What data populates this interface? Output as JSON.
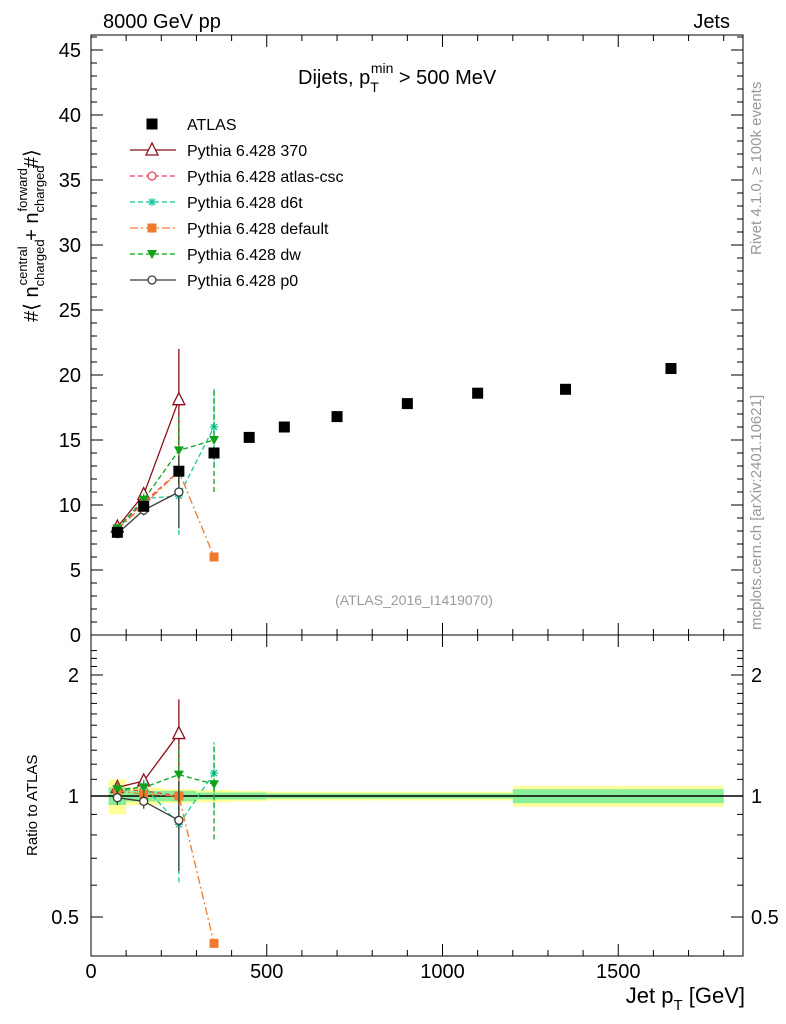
{
  "header": {
    "left": "8000 GeV pp",
    "right": "Jets",
    "side_top": "Rivet 4.1.0, ≥ 100k events",
    "side_bottom": "mcplots.cern.ch [arXiv:2401.10621]",
    "watermark": "(ATLAS_2016_I1419070)"
  },
  "chart_data": [
    {
      "type": "scatter",
      "title": "Dijets, p_T^min > 500 MeV",
      "ylabel": "#⟨ n_charged^central + n_charged^forward #⟩",
      "xlim": [
        0,
        1850
      ],
      "ylim": [
        0,
        46
      ],
      "yticks": [
        0,
        5,
        10,
        15,
        20,
        25,
        30,
        35,
        40,
        45
      ],
      "data": {
        "name": "ATLAS",
        "x": [
          75,
          150,
          250,
          350,
          450,
          550,
          700,
          900,
          1100,
          1350,
          1650
        ],
        "y": [
          7.9,
          9.9,
          12.6,
          14.0,
          15.2,
          16.0,
          16.8,
          17.8,
          18.6,
          18.9,
          20.5
        ]
      },
      "series": [
        {
          "name": "Pythia 6.428 370",
          "color": "#8b0f1a",
          "style": "solid",
          "marker": "triangle-open",
          "x": [
            75,
            150,
            250
          ],
          "y": [
            8.3,
            10.8,
            18.1
          ],
          "err": [
            0.3,
            0.4,
            3.9
          ]
        },
        {
          "name": "Pythia 6.428 atlas-csc",
          "color": "#e8455a",
          "style": "dashed",
          "marker": "circle-open",
          "x": [
            75,
            150,
            250
          ],
          "y": [
            8.2,
            10.2,
            12.6
          ],
          "err": [
            0.3,
            0.4,
            2.2
          ]
        },
        {
          "name": "Pythia 6.428 d6t",
          "color": "#18c8a0",
          "style": "dashed",
          "marker": "star",
          "x": [
            75,
            150,
            250,
            350
          ],
          "y": [
            8.1,
            10.5,
            10.7,
            16.0
          ],
          "err": [
            0.3,
            0.4,
            3.0,
            3.0
          ]
        },
        {
          "name": "Pythia 6.428 default",
          "color": "#f07a2c",
          "style": "dashdot",
          "marker": "square",
          "x": [
            75,
            150,
            250,
            350
          ],
          "y": [
            8.1,
            10.0,
            12.6,
            6.0
          ],
          "err": [
            0.3,
            0.4,
            2.3,
            0
          ]
        },
        {
          "name": "Pythia 6.428 dw",
          "color": "#0fa31a",
          "style": "dashed",
          "marker": "triangle-down",
          "x": [
            75,
            150,
            250,
            350
          ],
          "y": [
            8.2,
            10.4,
            14.2,
            15.0
          ],
          "err": [
            0.3,
            0.4,
            2.6,
            4.0
          ]
        },
        {
          "name": "Pythia 6.428 p0",
          "color": "#3a3a3a",
          "style": "solid",
          "marker": "circle-open",
          "x": [
            75,
            150,
            250
          ],
          "y": [
            7.8,
            9.6,
            11.0
          ],
          "err": [
            0.3,
            0.4,
            2.8
          ]
        }
      ]
    },
    {
      "type": "scatter",
      "ylabel": "Ratio to ATLAS",
      "xlabel": "Jet p_T [GeV]",
      "xlim": [
        0,
        1850
      ],
      "ylim": [
        0.4,
        2.4
      ],
      "ytick_labels": [
        "0.5",
        "1",
        "2"
      ],
      "xtick_labels": [
        "0",
        "500",
        "1000",
        "1500"
      ],
      "xticks": [
        0,
        500,
        1000,
        1500
      ],
      "yticks": [
        0.5,
        1,
        2
      ],
      "bands": [
        {
          "x": [
            50,
            100
          ],
          "inner": 0.05,
          "outer": 0.1
        },
        {
          "x": [
            100,
            200
          ],
          "inner": 0.03,
          "outer": 0.05
        },
        {
          "x": [
            200,
            300
          ],
          "inner": 0.03,
          "outer": 0.04
        },
        {
          "x": [
            300,
            400
          ],
          "inner": 0.02,
          "outer": 0.035
        },
        {
          "x": [
            400,
            500
          ],
          "inner": 0.02,
          "outer": 0.03
        },
        {
          "x": [
            500,
            600
          ],
          "inner": 0.015,
          "outer": 0.025
        },
        {
          "x": [
            600,
            800
          ],
          "inner": 0.015,
          "outer": 0.025
        },
        {
          "x": [
            800,
            1000
          ],
          "inner": 0.015,
          "outer": 0.025
        },
        {
          "x": [
            1000,
            1200
          ],
          "inner": 0.015,
          "outer": 0.025
        },
        {
          "x": [
            1200,
            1500
          ],
          "inner": 0.04,
          "outer": 0.06
        },
        {
          "x": [
            1500,
            1800
          ],
          "inner": 0.04,
          "outer": 0.06
        }
      ],
      "series": [
        {
          "name": "Pythia 6.428 370",
          "x": [
            75,
            150,
            250
          ],
          "y": [
            1.05,
            1.09,
            1.43
          ],
          "err": [
            0.04,
            0.04,
            0.31
          ]
        },
        {
          "name": "Pythia 6.428 atlas-csc",
          "x": [
            75,
            150,
            250
          ],
          "y": [
            1.04,
            1.03,
            1.0
          ],
          "err": [
            0.04,
            0.04,
            0.17
          ]
        },
        {
          "name": "Pythia 6.428 d6t",
          "x": [
            75,
            150,
            250,
            350
          ],
          "y": [
            1.02,
            1.06,
            0.85,
            1.14
          ],
          "err": [
            0.04,
            0.04,
            0.24,
            0.21
          ]
        },
        {
          "name": "Pythia 6.428 default",
          "x": [
            75,
            150,
            250,
            350
          ],
          "y": [
            1.03,
            1.01,
            1.0,
            0.43
          ],
          "err": [
            0.04,
            0.04,
            0.18,
            0
          ]
        },
        {
          "name": "Pythia 6.428 dw",
          "x": [
            75,
            150,
            250,
            350
          ],
          "y": [
            1.04,
            1.05,
            1.13,
            1.07
          ],
          "err": [
            0.04,
            0.04,
            0.21,
            0.29
          ]
        },
        {
          "name": "Pythia 6.428 p0",
          "x": [
            75,
            150,
            250
          ],
          "y": [
            0.99,
            0.97,
            0.87
          ],
          "err": [
            0.04,
            0.04,
            0.22
          ]
        }
      ]
    }
  ]
}
